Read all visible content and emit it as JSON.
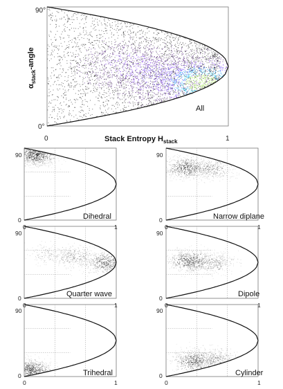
{
  "chart_data": [
    {
      "type": "heatmap",
      "label": "All",
      "xlabel": "Stack Entropy H",
      "xlabel_sub": "stack",
      "ylabel_prefix": "α",
      "ylabel_sub": "stack",
      "ylabel_suffix": "-angle",
      "xlim": [
        0,
        1
      ],
      "ylim": [
        0,
        90
      ],
      "x_ticks": [
        "0",
        "1"
      ],
      "y_ticks": [
        "0°",
        "90°"
      ],
      "colormap": [
        "#000000",
        "#5b2a86",
        "#8b4cf0",
        "#7e5cff",
        "#2aa0ff",
        "#37d3ff",
        "#b9ff6a"
      ],
      "density_peaks": [
        {
          "x": 0.85,
          "y": 33,
          "weight": 1.0
        },
        {
          "x": 0.62,
          "y": 38,
          "weight": 0.55
        },
        {
          "x": 0.45,
          "y": 46,
          "weight": 0.4
        }
      ]
    },
    {
      "type": "heatmap",
      "label": "Dihedral",
      "xlim": [
        0,
        1
      ],
      "ylim": [
        0,
        90
      ],
      "x_ticks": [
        "0",
        "1"
      ],
      "y_ticks": [
        "0",
        "90"
      ],
      "density_peaks": [
        {
          "x": 0.12,
          "y": 82,
          "weight": 1.0
        }
      ]
    },
    {
      "type": "heatmap",
      "label": "Narrow diplane",
      "xlim": [
        0,
        1
      ],
      "ylim": [
        0,
        90
      ],
      "x_ticks": [
        "0",
        "1"
      ],
      "y_ticks": [
        "0",
        "90"
      ],
      "density_peaks": [
        {
          "x": 0.22,
          "y": 66,
          "weight": 1.0
        },
        {
          "x": 0.5,
          "y": 64,
          "weight": 0.6
        }
      ]
    },
    {
      "type": "heatmap",
      "label": "Quarter wave",
      "xlim": [
        0,
        1
      ],
      "ylim": [
        0,
        90
      ],
      "x_ticks": [
        "0",
        "1"
      ],
      "y_ticks": [
        "0",
        "90"
      ],
      "density_peaks": [
        {
          "x": 0.88,
          "y": 45,
          "weight": 1.0
        },
        {
          "x": 0.55,
          "y": 52,
          "weight": 0.6
        },
        {
          "x": 0.25,
          "y": 55,
          "weight": 0.35
        }
      ]
    },
    {
      "type": "heatmap",
      "label": "Dipole",
      "xlim": [
        0,
        1
      ],
      "ylim": [
        0,
        90
      ],
      "x_ticks": [
        "0",
        "1"
      ],
      "y_ticks": [
        "0",
        "90"
      ],
      "density_peaks": [
        {
          "x": 0.25,
          "y": 47,
          "weight": 1.0
        },
        {
          "x": 0.5,
          "y": 45,
          "weight": 0.6
        }
      ]
    },
    {
      "type": "heatmap",
      "label": "Trihedral",
      "xlim": [
        0,
        1
      ],
      "ylim": [
        0,
        90
      ],
      "x_ticks": [
        "0",
        "1"
      ],
      "y_ticks": [
        "0",
        "90"
      ],
      "density_peaks": [
        {
          "x": 0.06,
          "y": 8,
          "weight": 1.0
        }
      ]
    },
    {
      "type": "heatmap",
      "label": "Cylinder",
      "xlim": [
        0,
        1
      ],
      "ylim": [
        0,
        90
      ],
      "x_ticks": [
        "0",
        "1"
      ],
      "y_ticks": [
        "0",
        "90"
      ],
      "density_peaks": [
        {
          "x": 0.3,
          "y": 20,
          "weight": 1.0
        },
        {
          "x": 0.55,
          "y": 22,
          "weight": 0.6
        }
      ]
    }
  ]
}
